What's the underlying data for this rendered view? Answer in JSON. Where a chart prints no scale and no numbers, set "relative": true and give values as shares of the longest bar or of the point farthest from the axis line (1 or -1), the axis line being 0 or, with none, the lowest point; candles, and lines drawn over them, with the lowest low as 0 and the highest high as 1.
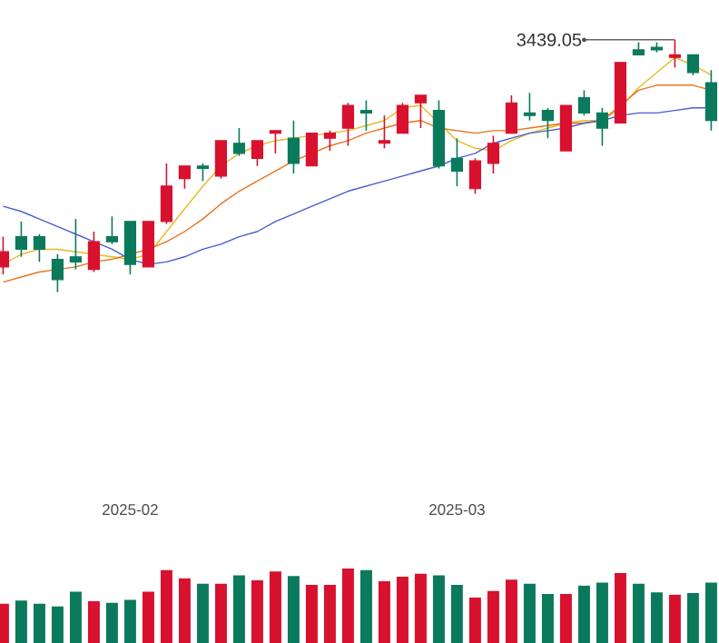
{
  "chart_data": [
    {
      "type": "candlestick",
      "relative": true,
      "categories": [
        null,
        null,
        null,
        null,
        null,
        null,
        null,
        "2025-02",
        null,
        null,
        null,
        null,
        null,
        null,
        null,
        null,
        null,
        null,
        null,
        null,
        null,
        null,
        null,
        null,
        null,
        "2025-03",
        null,
        null,
        null,
        null,
        null,
        null,
        null,
        null,
        null,
        null,
        null,
        null,
        null,
        null
      ],
      "ohlc": [
        [
          0.1,
          0.22,
          0.07,
          0.16
        ],
        [
          0.22,
          0.28,
          0.14,
          0.17
        ],
        [
          0.22,
          0.23,
          0.12,
          0.17
        ],
        [
          0.13,
          0.15,
          0.0,
          0.05
        ],
        [
          0.14,
          0.29,
          0.09,
          0.12
        ],
        [
          0.09,
          0.24,
          0.08,
          0.2
        ],
        [
          0.22,
          0.3,
          0.19,
          0.2
        ],
        [
          0.28,
          0.28,
          0.07,
          0.11
        ],
        [
          0.1,
          0.28,
          0.1,
          0.28
        ],
        [
          0.28,
          0.51,
          0.27,
          0.42
        ],
        [
          0.45,
          0.5,
          0.41,
          0.5
        ],
        [
          0.5,
          0.51,
          0.44,
          0.49
        ],
        [
          0.46,
          0.6,
          0.45,
          0.6
        ],
        [
          0.59,
          0.65,
          0.54,
          0.55
        ],
        [
          0.53,
          0.6,
          0.5,
          0.6
        ],
        [
          0.63,
          0.64,
          0.55,
          0.64
        ],
        [
          0.61,
          0.68,
          0.47,
          0.51
        ],
        [
          0.5,
          0.63,
          0.5,
          0.63
        ],
        [
          0.61,
          0.64,
          0.56,
          0.63
        ],
        [
          0.65,
          0.75,
          0.58,
          0.74
        ],
        [
          0.72,
          0.76,
          0.64,
          0.71
        ],
        [
          0.59,
          0.7,
          0.57,
          0.6
        ],
        [
          0.63,
          0.75,
          0.63,
          0.74
        ],
        [
          0.75,
          0.78,
          0.65,
          0.78
        ],
        [
          0.72,
          0.76,
          0.49,
          0.5
        ],
        [
          0.53,
          0.61,
          0.42,
          0.48
        ],
        [
          0.41,
          0.53,
          0.39,
          0.52
        ],
        [
          0.51,
          0.62,
          0.47,
          0.59
        ],
        [
          0.63,
          0.78,
          0.63,
          0.75
        ],
        [
          0.71,
          0.79,
          0.68,
          0.7
        ],
        [
          0.72,
          0.73,
          0.61,
          0.68
        ],
        [
          0.56,
          0.74,
          0.56,
          0.74
        ],
        [
          0.77,
          0.8,
          0.7,
          0.71
        ],
        [
          0.71,
          0.73,
          0.58,
          0.65
        ],
        [
          0.67,
          0.91,
          0.67,
          0.91
        ],
        [
          0.96,
          0.99,
          0.94,
          0.94
        ],
        [
          0.97,
          0.99,
          0.95,
          0.96
        ],
        [
          0.93,
          1.0,
          0.89,
          0.94
        ],
        [
          0.94,
          0.94,
          0.86,
          0.87
        ],
        [
          0.83,
          0.88,
          0.64,
          0.68
        ]
      ],
      "colors": [
        "#d7112e",
        "#0b7a5c",
        "#0b7a5c",
        "#0b7a5c",
        "#0b7a5c",
        "#d7112e",
        "#0b7a5c",
        "#0b7a5c",
        "#d7112e",
        "#d7112e",
        "#d7112e",
        "#0b7a5c",
        "#d7112e",
        "#0b7a5c",
        "#d7112e",
        "#d7112e",
        "#0b7a5c",
        "#d7112e",
        "#d7112e",
        "#d7112e",
        "#0b7a5c",
        "#d7112e",
        "#d7112e",
        "#d7112e",
        "#0b7a5c",
        "#0b7a5c",
        "#d7112e",
        "#d7112e",
        "#d7112e",
        "#0b7a5c",
        "#0b7a5c",
        "#d7112e",
        "#0b7a5c",
        "#0b7a5c",
        "#d7112e",
        "#0b7a5c",
        "#0b7a5c",
        "#d7112e",
        "#0b7a5c",
        "#0b7a5c"
      ],
      "series": [
        {
          "type": "line",
          "color": "#e8b923",
          "values": [
            0.11,
            0.15,
            0.17,
            0.17,
            0.16,
            0.15,
            0.14,
            0.13,
            0.15,
            0.24,
            0.33,
            0.42,
            0.5,
            0.55,
            0.58,
            0.6,
            0.61,
            0.62,
            0.63,
            0.64,
            0.66,
            0.68,
            0.73,
            0.74,
            0.67,
            0.6,
            0.57,
            0.56,
            0.6,
            0.63,
            0.65,
            0.67,
            0.68,
            0.68,
            0.73,
            0.81,
            0.87,
            0.93,
            0.9,
            0.86
          ]
        },
        {
          "type": "line",
          "color": "#e8741f",
          "values": [
            0.04,
            0.06,
            0.08,
            0.09,
            0.1,
            0.12,
            0.13,
            0.15,
            0.17,
            0.2,
            0.24,
            0.29,
            0.35,
            0.4,
            0.44,
            0.48,
            0.52,
            0.55,
            0.58,
            0.6,
            0.63,
            0.65,
            0.67,
            0.68,
            0.65,
            0.64,
            0.63,
            0.64,
            0.64,
            0.65,
            0.66,
            0.67,
            0.67,
            0.68,
            0.74,
            0.8,
            0.82,
            0.82,
            0.82,
            0.8
          ]
        },
        {
          "type": "line",
          "color": "#4a5ccf",
          "values": [
            0.34,
            0.32,
            0.29,
            0.26,
            0.23,
            0.2,
            0.17,
            0.13,
            0.11,
            0.12,
            0.14,
            0.17,
            0.19,
            0.22,
            0.24,
            0.28,
            0.31,
            0.34,
            0.37,
            0.4,
            0.42,
            0.44,
            0.46,
            0.48,
            0.5,
            0.53,
            0.55,
            0.59,
            0.61,
            0.63,
            0.64,
            0.65,
            0.67,
            0.68,
            0.7,
            0.71,
            0.71,
            0.72,
            0.73,
            0.73
          ]
        }
      ],
      "annotations": [
        "3439.05"
      ]
    },
    {
      "type": "bar",
      "relative": true,
      "categories": [
        null,
        null,
        null,
        null,
        null,
        null,
        null,
        null,
        null,
        null,
        null,
        null,
        null,
        null,
        null,
        null,
        null,
        null,
        null,
        null,
        null,
        null,
        null,
        null,
        null,
        null,
        null,
        null,
        null,
        null,
        null,
        null,
        null,
        null,
        null,
        null,
        null,
        null,
        null,
        null
      ],
      "values": [
        0.53,
        0.57,
        0.53,
        0.49,
        0.69,
        0.56,
        0.54,
        0.58,
        0.69,
        0.98,
        0.87,
        0.8,
        0.8,
        0.91,
        0.84,
        0.96,
        0.9,
        0.78,
        0.78,
        1,
        0.98,
        0.83,
        0.89,
        0.93,
        0.91,
        0.78,
        0.61,
        0.7,
        0.85,
        0.8,
        0.66,
        0.66,
        0.77,
        0.81,
        0.94,
        0.8,
        0.68,
        0.65,
        0.67,
        0.81
      ],
      "colors": [
        "#d7112e",
        "#0b7a5c",
        "#0b7a5c",
        "#0b7a5c",
        "#0b7a5c",
        "#d7112e",
        "#0b7a5c",
        "#0b7a5c",
        "#d7112e",
        "#d7112e",
        "#d7112e",
        "#0b7a5c",
        "#d7112e",
        "#0b7a5c",
        "#d7112e",
        "#d7112e",
        "#0b7a5c",
        "#d7112e",
        "#d7112e",
        "#d7112e",
        "#0b7a5c",
        "#d7112e",
        "#d7112e",
        "#d7112e",
        "#0b7a5c",
        "#0b7a5c",
        "#d7112e",
        "#d7112e",
        "#d7112e",
        "#0b7a5c",
        "#0b7a5c",
        "#d7112e",
        "#0b7a5c",
        "#0b7a5c",
        "#d7112e",
        "#0b7a5c",
        "#0b7a5c",
        "#d7112e",
        "#0b7a5c",
        "#0b7a5c"
      ]
    }
  ]
}
